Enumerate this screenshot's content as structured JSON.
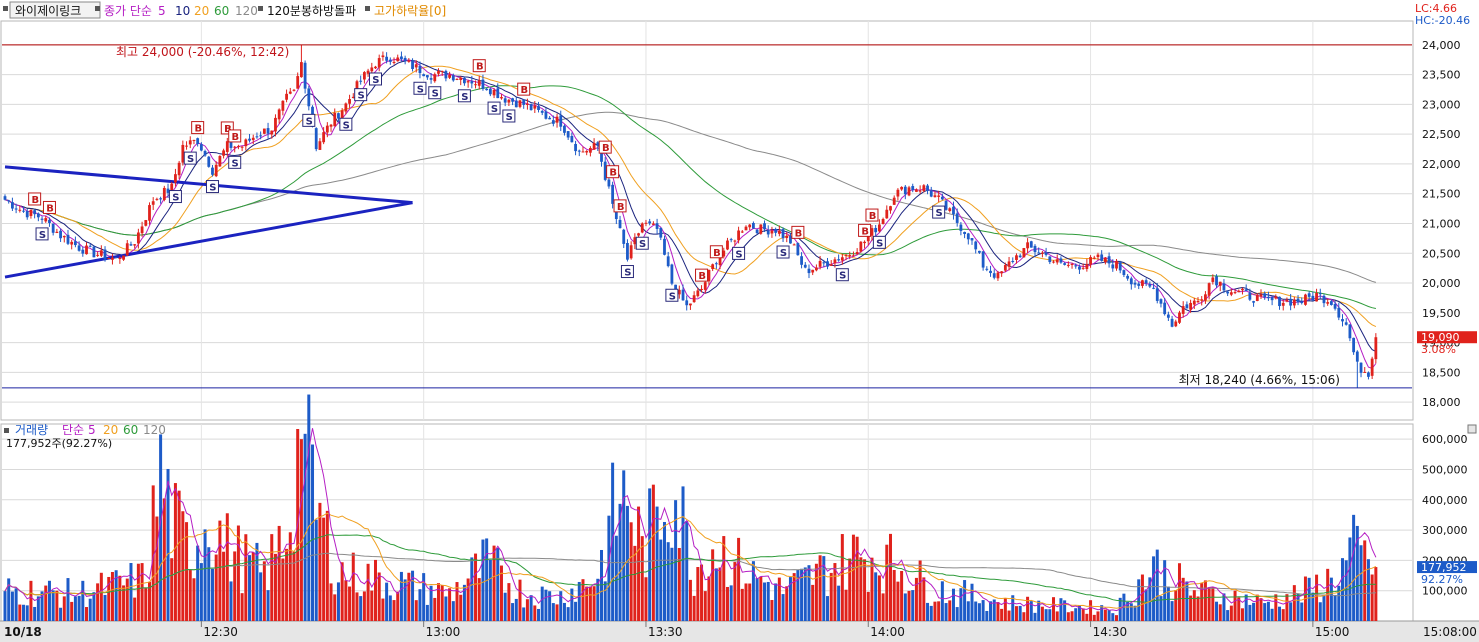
{
  "header": {
    "stock_button": "와이제이링크",
    "ma_title": "종가 단순",
    "ma_periods": [
      "5",
      "10",
      "20",
      "60",
      "120"
    ],
    "indicator": "120분봉하방돌파",
    "sub_indicator": "고가하락율[0]",
    "lc_label": "LC:4.66",
    "hc_label": "HC:-20.46"
  },
  "colors": {
    "up": "#e0221c",
    "down": "#1d5bc8",
    "ma5": "#b51fc4",
    "ma10": "#1a237e",
    "ma20": "#f0a020",
    "ma60": "#2e9b3a",
    "ma120": "#8a8a8a",
    "trendline": "#1b23c0",
    "high_line": "#b00000",
    "low_line": "#1b23a0"
  },
  "price_axis": {
    "min": 17700,
    "max": 24400,
    "ticks": [
      "24,000",
      "23,500",
      "23,000",
      "22,500",
      "22,000",
      "21,500",
      "21,000",
      "20,500",
      "20,000",
      "19,500",
      "19,000",
      "18,500",
      "18,000"
    ]
  },
  "annotations": {
    "high": "최고 24,000 (-20.46%, 12:42)",
    "low": "최저 18,240 (4.66%, 15:06)",
    "current_price": "19,090",
    "current_change": "3.08%",
    "high_value": 24000,
    "low_value": 18240
  },
  "volume_panel": {
    "title": "거래량",
    "ma_title": "단순",
    "ma_periods": [
      "5",
      "20",
      "60",
      "120"
    ],
    "last_volume_text": "177,952주(92.27%)",
    "current_label": "177,952",
    "current_pct": "92.27%",
    "axis_ticks": [
      "600,000",
      "500,000",
      "400,000",
      "300,000",
      "200,000",
      "100,000"
    ]
  },
  "time_axis": [
    "10/18",
    "12:30",
    "13:00",
    "13:30",
    "14:00",
    "14:30",
    "15:00",
    "15:08:00"
  ],
  "chart_data": {
    "type": "candlestick",
    "interval": "1 minute",
    "price_control_points": [
      [
        0,
        21400
      ],
      [
        5,
        21200
      ],
      [
        10,
        21100
      ],
      [
        15,
        20800
      ],
      [
        20,
        20600
      ],
      [
        24,
        20500
      ],
      [
        30,
        20400
      ],
      [
        35,
        20700
      ],
      [
        40,
        21400
      ],
      [
        45,
        21600
      ],
      [
        48,
        22300
      ],
      [
        52,
        22400
      ],
      [
        56,
        21900
      ],
      [
        60,
        22300
      ],
      [
        64,
        22300
      ],
      [
        68,
        22500
      ],
      [
        72,
        22600
      ],
      [
        76,
        23100
      ],
      [
        78,
        23200
      ],
      [
        80,
        23700
      ],
      [
        84,
        22300
      ],
      [
        88,
        22700
      ],
      [
        92,
        23000
      ],
      [
        96,
        23400
      ],
      [
        100,
        23700
      ],
      [
        104,
        23800
      ],
      [
        108,
        23700
      ],
      [
        115,
        23500
      ],
      [
        120,
        23500
      ],
      [
        126,
        23400
      ],
      [
        130,
        23300
      ],
      [
        135,
        23100
      ],
      [
        140,
        23000
      ],
      [
        146,
        22800
      ],
      [
        150,
        22700
      ],
      [
        155,
        22200
      ],
      [
        160,
        22300
      ],
      [
        164,
        21300
      ],
      [
        168,
        20400
      ],
      [
        172,
        21000
      ],
      [
        176,
        20900
      ],
      [
        180,
        20000
      ],
      [
        184,
        19600
      ],
      [
        188,
        19900
      ],
      [
        192,
        20400
      ],
      [
        196,
        20700
      ],
      [
        200,
        21000
      ],
      [
        204,
        20900
      ],
      [
        208,
        20900
      ],
      [
        212,
        20700
      ],
      [
        216,
        20200
      ],
      [
        220,
        20300
      ],
      [
        224,
        20400
      ],
      [
        228,
        20500
      ],
      [
        232,
        20700
      ],
      [
        236,
        21000
      ],
      [
        240,
        21500
      ],
      [
        244,
        21600
      ],
      [
        248,
        21600
      ],
      [
        252,
        21400
      ],
      [
        256,
        21100
      ],
      [
        260,
        20800
      ],
      [
        264,
        20300
      ],
      [
        268,
        20100
      ],
      [
        272,
        20400
      ],
      [
        276,
        20600
      ],
      [
        280,
        20500
      ],
      [
        285,
        20300
      ],
      [
        290,
        20300
      ],
      [
        295,
        20400
      ],
      [
        300,
        20300
      ],
      [
        305,
        20000
      ],
      [
        310,
        19900
      ],
      [
        315,
        19300
      ],
      [
        318,
        19600
      ],
      [
        322,
        19700
      ],
      [
        326,
        20100
      ],
      [
        330,
        19900
      ],
      [
        335,
        19800
      ],
      [
        340,
        19700
      ],
      [
        345,
        19700
      ],
      [
        350,
        19700
      ],
      [
        354,
        19800
      ],
      [
        358,
        19700
      ],
      [
        362,
        19300
      ],
      [
        365,
        18600
      ],
      [
        368,
        18500
      ],
      [
        370,
        19090
      ]
    ],
    "high": 24000,
    "low": 18240,
    "last_close": 19090,
    "change_percent": 3.08,
    "signals": {
      "S": [
        10,
        46,
        50,
        56,
        62,
        82,
        92,
        96,
        100,
        112,
        116,
        124,
        132,
        136,
        168,
        172,
        180,
        198,
        210,
        226,
        236,
        252
      ],
      "B": [
        8,
        12,
        52,
        60,
        62,
        128,
        140,
        162,
        164,
        166,
        188,
        192,
        214,
        232,
        234
      ]
    },
    "trendlines": [
      {
        "from": [
          0,
          21950
        ],
        "to": [
          110,
          21350
        ]
      },
      {
        "from": [
          0,
          20100
        ],
        "to": [
          110,
          21350
        ]
      }
    ],
    "volume_control_points": [
      [
        0,
        100000
      ],
      [
        20,
        90000
      ],
      [
        38,
        140000
      ],
      [
        42,
        490000
      ],
      [
        45,
        330000
      ],
      [
        50,
        230000
      ],
      [
        55,
        350000
      ],
      [
        60,
        240000
      ],
      [
        70,
        150000
      ],
      [
        76,
        290000
      ],
      [
        80,
        600000
      ],
      [
        84,
        370000
      ],
      [
        90,
        160000
      ],
      [
        100,
        140000
      ],
      [
        120,
        90000
      ],
      [
        130,
        190000
      ],
      [
        140,
        90000
      ],
      [
        150,
        80000
      ],
      [
        160,
        150000
      ],
      [
        164,
        340000
      ],
      [
        168,
        420000
      ],
      [
        172,
        230000
      ],
      [
        180,
        470000
      ],
      [
        186,
        170000
      ],
      [
        192,
        250000
      ],
      [
        200,
        160000
      ],
      [
        210,
        100000
      ],
      [
        230,
        220000
      ],
      [
        240,
        190000
      ],
      [
        250,
        110000
      ],
      [
        270,
        60000
      ],
      [
        300,
        40000
      ],
      [
        310,
        180000
      ],
      [
        320,
        100000
      ],
      [
        340,
        60000
      ],
      [
        350,
        90000
      ],
      [
        360,
        150000
      ],
      [
        364,
        230000
      ],
      [
        370,
        177952
      ]
    ],
    "volume_ylim": [
      0,
      650000
    ]
  }
}
